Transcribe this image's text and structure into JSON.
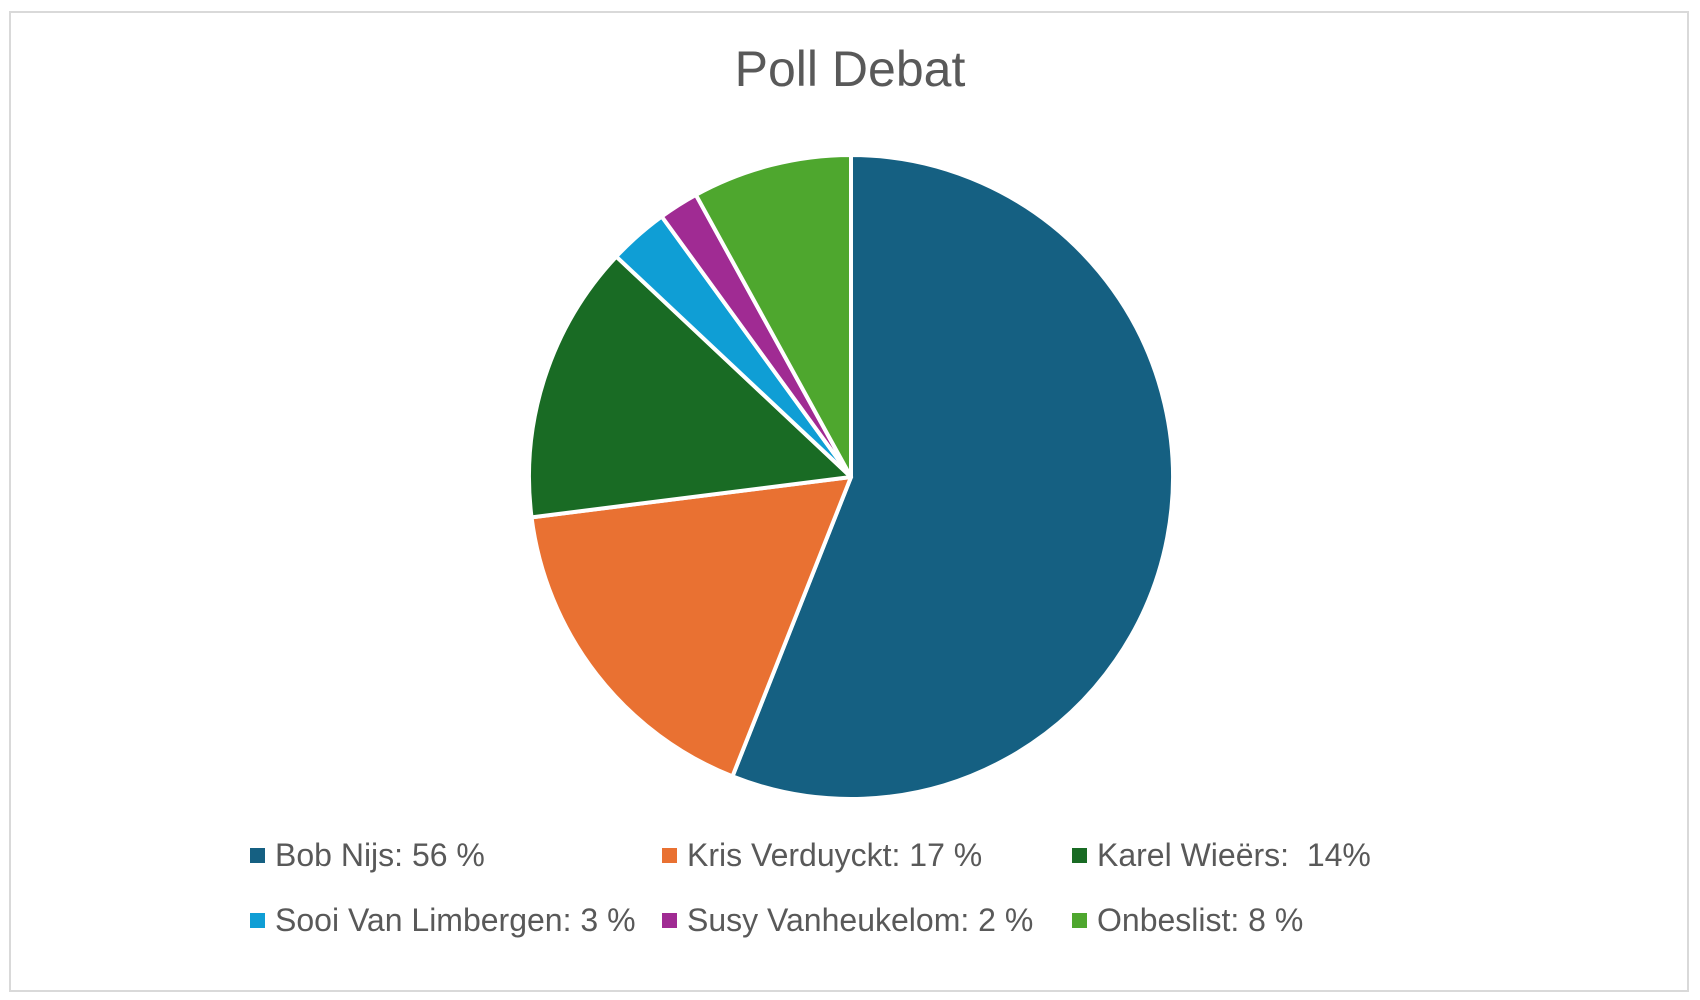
{
  "chart_data": {
    "type": "pie",
    "title": "Poll Debat",
    "start_angle_deg": 0,
    "direction": "clockwise",
    "legend_position": "bottom",
    "slices": [
      {
        "name": "Bob Nijs",
        "value": 56,
        "label": "Bob Nijs: 56 %",
        "color": "#156082"
      },
      {
        "name": "Kris Verduyckt",
        "value": 17,
        "label": "Kris Verduyckt: 17 %",
        "color": "#E97132"
      },
      {
        "name": "Karel Wieërs",
        "value": 14,
        "label": "Karel Wieërs:  14%",
        "color": "#196B24"
      },
      {
        "name": "Sooi Van Limbergen",
        "value": 3,
        "label": "Sooi Van Limbergen: 3 %",
        "color": "#0F9ED5"
      },
      {
        "name": "Susy Vanheukelom",
        "value": 2,
        "label": "Susy Vanheukelom: 2 %",
        "color": "#A02B93"
      },
      {
        "name": "Onbeslist",
        "value": 8,
        "label": "Onbeslist: 8 %",
        "color": "#4EA72E"
      }
    ]
  }
}
